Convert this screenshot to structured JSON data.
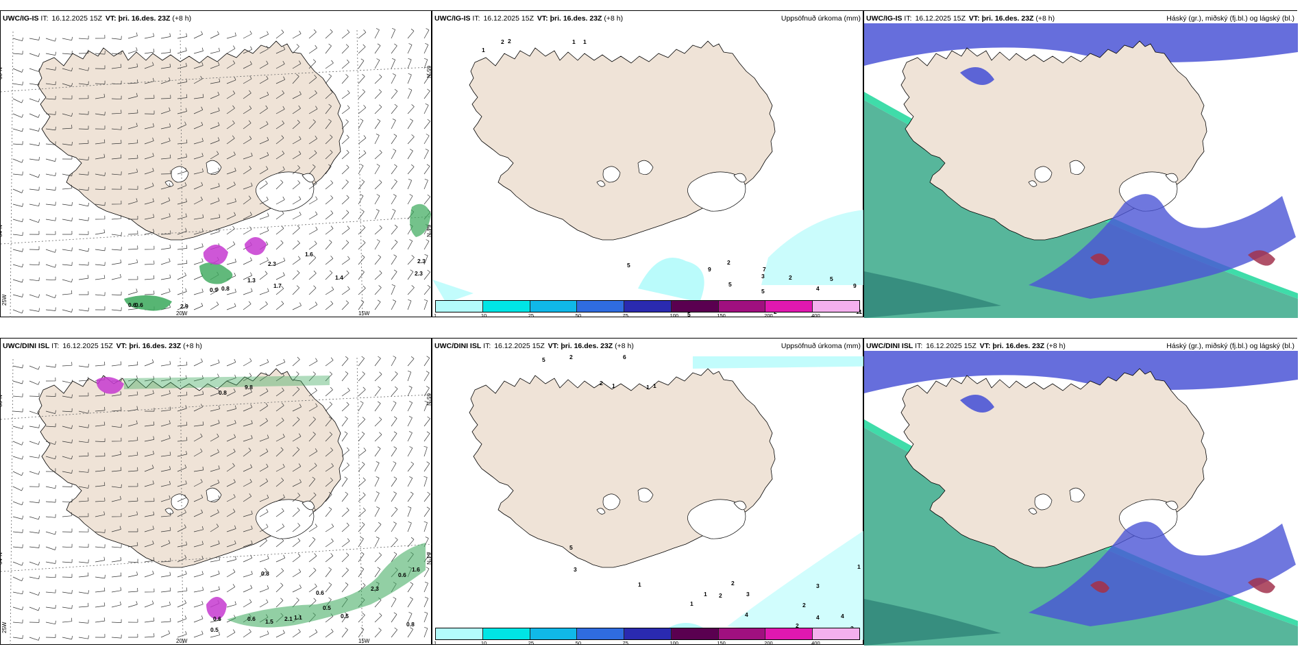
{
  "panels": [
    {
      "id": "p1",
      "model": "UWC/IG-IS",
      "it_label": "IT:",
      "it": "16.12.2025 15Z",
      "vt_label": "VT:",
      "vt": "þri. 16.des. 23Z",
      "lead": "(+8 h)",
      "right_title": ""
    },
    {
      "id": "p2",
      "model": "UWC/IG-IS",
      "it_label": "IT:",
      "it": "16.12.2025 15Z",
      "vt_label": "VT:",
      "vt": "þri. 16.des. 23Z",
      "lead": "(+8 h)",
      "right_title": "Uppsöfnuð úrkoma (mm)"
    },
    {
      "id": "p3",
      "model": "UWC/IG-IS",
      "it_label": "IT:",
      "it": "16.12.2025 15Z",
      "vt_label": "VT:",
      "vt": "þri. 16.des. 23Z",
      "lead": "(+8 h)",
      "right_title": "Háský (gr.), miðský (fj.bl.) og lágský (bl.)"
    },
    {
      "id": "p4",
      "model": "UWC/DINI ISL",
      "it_label": "IT:",
      "it": "16.12.2025 15Z",
      "vt_label": "VT:",
      "vt": "þri. 16.des. 23Z",
      "lead": "(+8 h)",
      "right_title": ""
    },
    {
      "id": "p5",
      "model": "UWC/DINI ISL",
      "it_label": "IT:",
      "it": "16.12.2025 15Z",
      "vt_label": "VT:",
      "vt": "þri. 16.des. 23Z",
      "lead": "(+8 h)",
      "right_title": "Uppsöfnuð úrkoma (mm)"
    },
    {
      "id": "p6",
      "model": "UWC/DINI ISL",
      "it_label": "IT:",
      "it": "16.12.2025 15Z",
      "vt_label": "VT:",
      "vt": "þri. 16.des. 23Z",
      "lead": "(+8 h)",
      "right_title": "Háský (gr.), miðský (fj.bl.) og lágský (bl.)"
    }
  ],
  "grid_labels": {
    "lat66": "66°N",
    "lat64": "64°N",
    "lat65": "65°N",
    "lon25": "25W",
    "lon20": "20W",
    "lon15": "15W"
  },
  "colorbar": {
    "ticks": [
      "1",
      "10",
      "25",
      "50",
      "75",
      "100",
      "150",
      "200",
      "400"
    ],
    "colors": [
      "#b3fbfb",
      "#00e5e5",
      "#10b8e8",
      "#2f6ce0",
      "#2a2ab0",
      "#5a0050",
      "#a0107f",
      "#e018b0",
      "#f4b0ee"
    ]
  },
  "wind_values_top": [
    "0.9",
    "0.8",
    "2.3",
    "1.3",
    "1.7",
    "0.6",
    "0.6",
    "2.9",
    "1.6",
    "1.4",
    "2.3",
    "2.3"
  ],
  "wind_values_bottom": [
    "0.8",
    "9.8",
    "0.6",
    "0.5",
    "0.6",
    "1.5",
    "2.1",
    "1.1",
    "0.5",
    "0.8",
    "0.6",
    "2.3",
    "0.6",
    "1.6",
    "0.8",
    "0.5"
  ],
  "precip_values_top": [
    "1",
    "2",
    "2",
    "1",
    "1",
    "5",
    "5",
    "9",
    "2",
    "3",
    "5",
    "7",
    "2",
    "4",
    "5",
    "9",
    "11",
    "2",
    "5"
  ],
  "precip_values_bottom": [
    "5",
    "2",
    "6",
    "2",
    "1",
    "1",
    "1",
    "3",
    "2",
    "4",
    "2",
    "1",
    "1",
    "1",
    "5",
    "3",
    "2",
    "2",
    "4",
    "4",
    "3",
    "3",
    "1",
    "2"
  ],
  "colors": {
    "land": "#efe3d7",
    "ocean": "#ffffff",
    "precip_green": "#39a85a",
    "precip_magenta": "#c63ad0",
    "cloud_blue": "#4b55d6",
    "cloud_teal": "#3aa98a",
    "cloud_red": "#a2334d"
  }
}
